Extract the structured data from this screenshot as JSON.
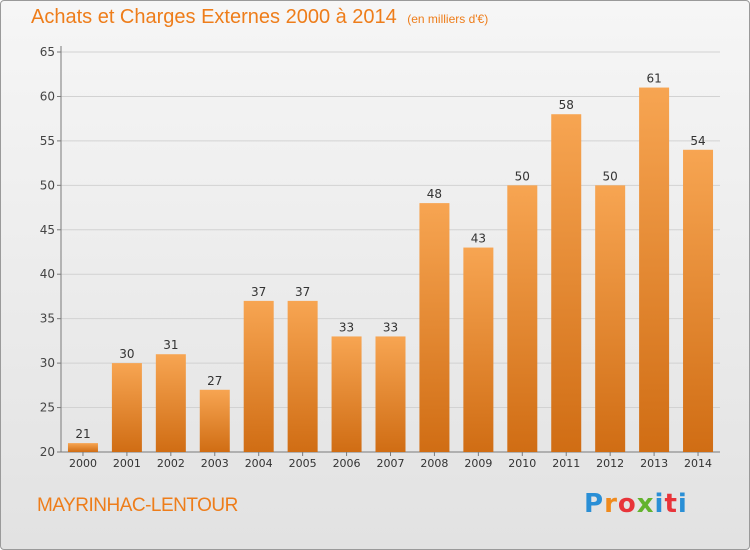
{
  "title": "Achats et Charges Externes 2000 à 2014",
  "unit": "(en milliers d'€)",
  "commune": "MAYRINHAC-LENTOUR",
  "brand": "Proxiti",
  "colors": {
    "accent": "#ee7d1a",
    "bar_light": "#f7a552",
    "bar_dark": "#d06d14",
    "brand_letters": [
      "#2a8fd6",
      "#f08a1c",
      "#e8343a",
      "#63b32e",
      "#2a8fd6",
      "#e8343a",
      "#2a8fd6"
    ]
  },
  "chart_data": {
    "type": "bar",
    "categories": [
      "2000",
      "2001",
      "2002",
      "2003",
      "2004",
      "2005",
      "2006",
      "2007",
      "2008",
      "2009",
      "2010",
      "2011",
      "2012",
      "2013",
      "2014"
    ],
    "values": [
      21,
      30,
      31,
      27,
      37,
      37,
      33,
      33,
      48,
      43,
      50,
      58,
      50,
      61,
      54
    ],
    "ylim": [
      20,
      65
    ],
    "yticks": [
      20,
      25,
      30,
      35,
      40,
      45,
      50,
      55,
      60,
      65
    ],
    "grid": true,
    "legend": "none"
  }
}
